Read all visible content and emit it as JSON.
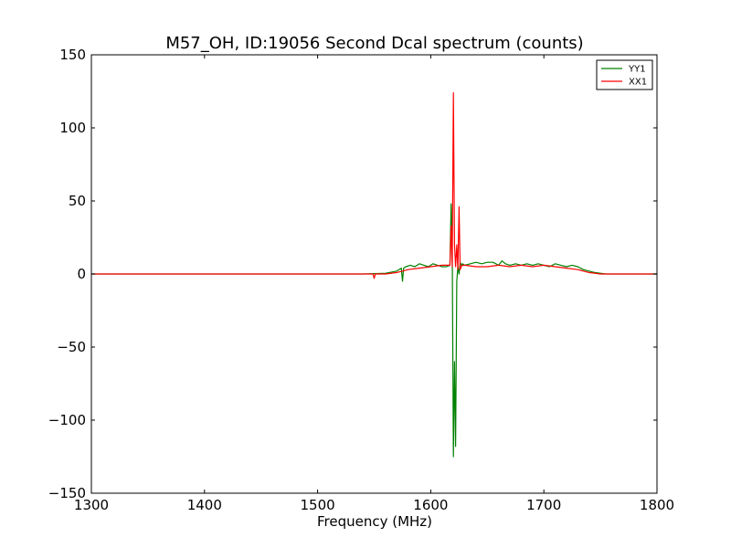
{
  "chart_data": {
    "type": "line",
    "title": "M57_OH, ID:19056 Second Dcal spectrum (counts)",
    "xlabel": "Frequency (MHz)",
    "ylabel": "",
    "xlim": [
      1300,
      1800
    ],
    "ylim": [
      -150,
      150
    ],
    "xticks": [
      1300,
      1400,
      1500,
      1600,
      1700,
      1800
    ],
    "yticks": [
      -150,
      -100,
      -50,
      0,
      50,
      100,
      150
    ],
    "ytick_labels": [
      "−150",
      "−100",
      "−50",
      "0",
      "50",
      "100",
      "150"
    ],
    "grid": false,
    "legend": "top-right",
    "series": [
      {
        "name": "YY1",
        "color": "#008000",
        "x": [
          1300,
          1400,
          1500,
          1540,
          1560,
          1570,
          1574,
          1575,
          1576,
          1578,
          1582,
          1586,
          1590,
          1594,
          1598,
          1602,
          1606,
          1610,
          1614,
          1617,
          1618,
          1619,
          1620,
          1621,
          1622,
          1623,
          1624,
          1625,
          1626,
          1627,
          1628,
          1630,
          1635,
          1640,
          1645,
          1650,
          1655,
          1660,
          1663,
          1666,
          1670,
          1675,
          1680,
          1685,
          1690,
          1695,
          1700,
          1705,
          1710,
          1715,
          1720,
          1725,
          1730,
          1735,
          1740,
          1745,
          1750,
          1755,
          1760,
          1770,
          1800
        ],
        "y": [
          0,
          0,
          0,
          0,
          0.5,
          2,
          4,
          -5,
          4,
          5,
          6,
          5,
          7,
          6,
          5,
          7,
          6,
          5,
          5,
          6,
          48,
          20,
          -125,
          -60,
          -118,
          -5,
          5,
          0,
          8,
          6,
          7,
          6,
          7,
          8,
          7,
          8,
          8,
          6,
          9,
          7,
          6,
          7,
          6,
          7,
          6,
          7,
          6,
          5,
          7,
          6,
          5,
          6,
          5,
          3,
          2,
          1,
          0.5,
          0,
          0,
          0,
          0
        ]
      },
      {
        "name": "XX1",
        "color": "#ff0000",
        "x": [
          1300,
          1400,
          1500,
          1545,
          1549,
          1550,
          1551,
          1555,
          1560,
          1570,
          1580,
          1590,
          1600,
          1610,
          1615,
          1617,
          1618,
          1619,
          1620,
          1621,
          1622,
          1623,
          1624,
          1625,
          1626,
          1627,
          1628,
          1630,
          1640,
          1650,
          1660,
          1670,
          1680,
          1690,
          1700,
          1710,
          1720,
          1730,
          1740,
          1750,
          1760,
          1800
        ],
        "y": [
          0,
          0,
          0,
          0,
          0,
          -3,
          0,
          0,
          0,
          1,
          3,
          4,
          5,
          6,
          6,
          6,
          33,
          5,
          124,
          20,
          5,
          20,
          3,
          46,
          3,
          5,
          6,
          6,
          5,
          5,
          6,
          5,
          6,
          5,
          6,
          5,
          4,
          3,
          1,
          0,
          0,
          0
        ]
      }
    ]
  }
}
